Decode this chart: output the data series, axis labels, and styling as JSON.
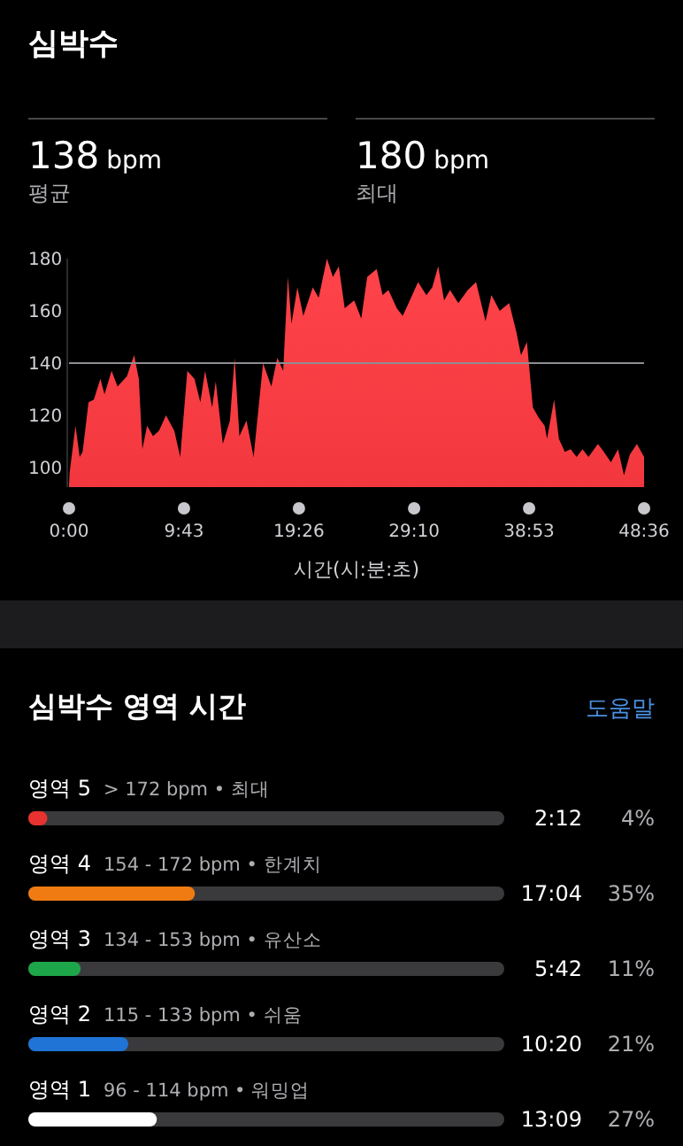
{
  "chart_data": [
    {
      "type": "area",
      "title": "심박수",
      "xlabel": "시간(시:분:초)",
      "annotations": [
        "138 bpm",
        "평균",
        "180 bpm",
        "최대"
      ],
      "x": [
        0,
        0.05,
        0.55,
        0.9,
        1.15,
        1.65,
        2.1,
        2.65,
        3.0,
        3.6,
        4.1,
        4.9,
        5.5,
        5.9,
        6.2,
        6.6,
        7.1,
        7.6,
        8.2,
        8.9,
        9.4,
        10.0,
        10.6,
        11.1,
        11.5,
        12.1,
        12.4,
        13.0,
        13.6,
        14.0,
        14.4,
        15.0,
        15.6,
        16.4,
        17.1,
        17.6,
        18.1,
        18.5,
        18.8,
        19.3,
        19.8,
        20.6,
        21.1,
        21.8,
        22.3,
        22.8,
        23.3,
        24.1,
        24.7,
        25.2,
        26.0,
        26.5,
        27.0,
        27.7,
        28.2,
        28.7,
        29.5,
        30.2,
        30.7,
        31.2,
        31.7,
        32.2,
        32.9,
        33.7,
        34.4,
        35.2,
        35.7,
        36.4,
        37.2,
        37.8,
        38.2,
        38.7,
        39.2,
        39.7,
        40.2,
        40.4,
        41.0,
        41.4,
        41.9,
        42.4,
        42.9,
        43.4,
        43.9,
        44.7,
        45.2,
        45.8,
        46.4,
        46.9,
        47.4,
        48.0,
        48.6
      ],
      "series": [
        {
          "color": "#f2383e",
          "values": [
            93,
            98,
            116,
            104,
            106,
            125,
            126,
            134,
            128,
            137,
            131,
            135,
            143,
            134,
            107,
            116,
            112,
            114,
            120,
            114,
            104,
            137,
            134,
            125,
            137,
            123,
            133,
            109,
            118,
            142,
            112,
            118,
            104,
            140,
            131,
            142,
            137,
            173,
            155,
            169,
            158,
            169,
            165,
            180,
            173,
            177,
            161,
            164,
            157,
            173,
            176,
            166,
            168,
            161,
            158,
            163,
            171,
            166,
            169,
            177,
            164,
            168,
            163,
            168,
            171,
            156,
            166,
            160,
            163,
            152,
            143,
            148,
            123,
            119,
            116,
            111,
            126,
            111,
            106,
            107,
            104,
            107,
            104,
            109,
            106,
            102,
            107,
            97,
            105,
            109,
            104
          ]
        }
      ],
      "xlim": [
        0,
        48.6
      ],
      "xticks": [
        {
          "value": 0,
          "label": "0:00"
        },
        {
          "value": 9.717,
          "label": "9:43"
        },
        {
          "value": 19.433,
          "label": "19:26"
        },
        {
          "value": 29.167,
          "label": "29:10"
        },
        {
          "value": 38.883,
          "label": "38:53"
        },
        {
          "value": 48.6,
          "label": "48:36"
        }
      ],
      "ylim": [
        92.5,
        180
      ],
      "yticks": [
        100,
        120,
        140,
        160,
        180
      ],
      "ref_lines": [
        {
          "axis": "y",
          "value": 140,
          "color": "#8e8e93"
        }
      ],
      "grid": false
    },
    {
      "type": "bar",
      "orientation": "horizontal",
      "title": "심박수 영역 시간",
      "categories": [
        "영역 5",
        "영역 4",
        "영역 3",
        "영역 2",
        "영역 1"
      ],
      "values": [
        4,
        35,
        11,
        21,
        27
      ],
      "colors": [
        "#e8322f",
        "#f07b12",
        "#1ea64a",
        "#1f74d6",
        "#ffffff"
      ],
      "value_labels": [
        "4%",
        "35%",
        "11%",
        "21%",
        "27%"
      ],
      "annotations": [
        "도움말",
        "> 172 bpm • 최대",
        "154 - 172 bpm • 한계치",
        "134 - 153 bpm • 유산소",
        "115 - 133 bpm • 쉬움",
        "96 - 114 bpm • 워밍업",
        "2:12",
        "17:04",
        "5:42",
        "10:20",
        "13:09"
      ],
      "xlim": [
        0,
        100
      ]
    }
  ]
}
